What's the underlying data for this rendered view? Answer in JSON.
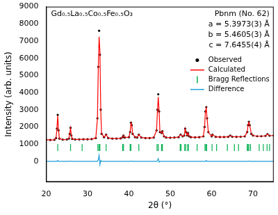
{
  "chart_data": {
    "type": "scatter",
    "title": "Gd₀.₅La₀.₅Co₀.₅Fe₀.₅O₃",
    "annotations": [
      "Pbnm (No. 62)",
      "a = 5.3973(3) Å",
      "b = 5.4605(3) Å",
      "c = 7.6455(4) Å"
    ],
    "x_label": "2θ (°)",
    "y_label": "Intensity (arb. units)",
    "xlim": [
      20,
      75
    ],
    "xticks": [
      20,
      30,
      40,
      50,
      60,
      70
    ],
    "ylim": [
      -1200,
      9000
    ],
    "yticks": [
      0,
      1000,
      2000,
      3000,
      4000,
      5000,
      6000,
      7000,
      8000,
      9000
    ],
    "grid": false,
    "legend": "right",
    "series": [
      {
        "name": "Observed",
        "color": "#000000",
        "marker": "circle",
        "x": [
          20,
          21,
          22,
          22.4,
          22.6,
          22.8,
          23.0,
          23.2,
          24,
          25,
          25.5,
          25.7,
          25.9,
          26.1,
          26.3,
          27,
          28,
          29,
          30,
          31,
          32,
          32.4,
          32.6,
          32.8,
          33.0,
          33.2,
          33.4,
          34,
          34.5,
          35,
          36,
          37,
          38,
          38.5,
          38.7,
          39,
          40,
          40.3,
          40.5,
          40.7,
          40.9,
          41.5,
          42,
          42.4,
          43,
          44,
          45,
          46,
          46.7,
          46.9,
          47.1,
          47.3,
          47.5,
          47.9,
          48.1,
          48.5,
          49,
          50,
          51,
          52,
          52.5,
          53,
          53.4,
          53.6,
          53.8,
          54.1,
          54.3,
          54.6,
          55,
          56,
          57,
          58,
          58.3,
          58.5,
          58.7,
          58.9,
          59.2,
          60,
          60.2,
          61,
          62,
          63,
          64,
          64.5,
          65,
          66,
          67,
          68,
          68.6,
          68.8,
          69.0,
          69.2,
          69.6,
          70,
          71,
          72,
          73,
          73.5,
          74,
          75
        ],
        "values": [
          1250,
          1240,
          1250,
          1350,
          1900,
          2700,
          1800,
          1320,
          1260,
          1270,
          1320,
          1600,
          1950,
          1500,
          1300,
          1270,
          1270,
          1280,
          1280,
          1290,
          1350,
          2500,
          5500,
          7600,
          6200,
          3000,
          1600,
          1400,
          1550,
          1350,
          1320,
          1320,
          1330,
          1400,
          1500,
          1380,
          1400,
          1700,
          2250,
          2100,
          1600,
          1400,
          1380,
          1550,
          1380,
          1350,
          1350,
          1380,
          1800,
          3000,
          3900,
          2900,
          1700,
          1650,
          1750,
          1450,
          1380,
          1370,
          1380,
          1400,
          1550,
          1450,
          1500,
          1900,
          1700,
          1500,
          1650,
          1450,
          1400,
          1390,
          1400,
          1450,
          2000,
          2900,
          3150,
          2500,
          1700,
          1450,
          1550,
          1420,
          1410,
          1410,
          1420,
          1500,
          1430,
          1420,
          1430,
          1450,
          1700,
          2100,
          2300,
          2100,
          1600,
          1500,
          1460,
          1460,
          1480,
          1580,
          1490,
          1500
        ]
      },
      {
        "name": "Calculated",
        "color": "#ff0000",
        "line_style": "solid",
        "x": [
          20,
          21,
          22,
          22.4,
          22.6,
          22.8,
          23.0,
          23.2,
          24,
          25,
          25.5,
          25.7,
          25.9,
          26.1,
          26.3,
          27,
          28,
          29,
          30,
          31,
          32,
          32.4,
          32.6,
          32.8,
          33.0,
          33.2,
          33.4,
          34,
          34.5,
          35,
          36,
          37,
          38,
          38.5,
          38.7,
          39,
          40,
          40.3,
          40.5,
          40.7,
          40.9,
          41.5,
          42,
          42.4,
          43,
          44,
          45,
          46,
          46.7,
          46.9,
          47.1,
          47.3,
          47.5,
          47.9,
          48.1,
          48.5,
          49,
          50,
          51,
          52,
          52.5,
          53,
          53.4,
          53.6,
          53.8,
          54.1,
          54.3,
          54.6,
          55,
          56,
          57,
          58,
          58.3,
          58.5,
          58.7,
          58.9,
          59.2,
          60,
          60.2,
          61,
          62,
          63,
          64,
          64.5,
          65,
          66,
          67,
          68,
          68.6,
          68.8,
          69.0,
          69.2,
          69.6,
          70,
          71,
          72,
          73,
          73.5,
          74,
          75
        ],
        "values": [
          1250,
          1240,
          1250,
          1350,
          1900,
          2650,
          1800,
          1320,
          1260,
          1270,
          1320,
          1600,
          1930,
          1500,
          1300,
          1270,
          1270,
          1280,
          1280,
          1290,
          1350,
          2500,
          5400,
          7250,
          6400,
          2950,
          1600,
          1400,
          1550,
          1350,
          1320,
          1320,
          1330,
          1400,
          1500,
          1380,
          1400,
          1700,
          2230,
          2100,
          1600,
          1400,
          1380,
          1550,
          1380,
          1350,
          1350,
          1380,
          1800,
          2950,
          3750,
          2950,
          1700,
          1650,
          1750,
          1450,
          1380,
          1370,
          1380,
          1400,
          1550,
          1450,
          1500,
          1900,
          1700,
          1500,
          1650,
          1450,
          1400,
          1390,
          1400,
          1450,
          2000,
          2900,
          3100,
          2500,
          1700,
          1450,
          1550,
          1420,
          1410,
          1410,
          1420,
          1500,
          1430,
          1420,
          1430,
          1450,
          1700,
          2100,
          2280,
          2100,
          1600,
          1500,
          1460,
          1460,
          1480,
          1580,
          1490,
          1500
        ]
      },
      {
        "name": "Bragg Reflections",
        "color": "#00b050",
        "marker": "line",
        "x": [
          22.8,
          25.9,
          28.7,
          32.5,
          32.8,
          33.0,
          34.5,
          38.5,
          38.7,
          40.3,
          40.5,
          42.4,
          46.8,
          47.1,
          47.9,
          48.1,
          52.4,
          52.6,
          53.5,
          53.7,
          54.2,
          54.4,
          56.5,
          58.4,
          58.6,
          58.8,
          60.1,
          61.2,
          63.8,
          65.5,
          66.5,
          68.6,
          68.8,
          69.0,
          69.4,
          71.5,
          72.5,
          73.4,
          74.0
        ],
        "values": [
          800,
          800,
          800,
          800,
          800,
          800,
          800,
          800,
          800,
          800,
          800,
          800,
          800,
          800,
          800,
          800,
          800,
          800,
          800,
          800,
          800,
          800,
          800,
          800,
          800,
          800,
          800,
          800,
          800,
          800,
          800,
          800,
          800,
          800,
          800,
          800,
          800,
          800,
          800
        ]
      },
      {
        "name": "Difference",
        "color": "#1f9fd8",
        "line_style": "solid",
        "x": [
          20,
          21,
          22,
          22.4,
          22.6,
          22.8,
          23.0,
          23.2,
          24,
          25,
          25.5,
          25.7,
          25.9,
          26.1,
          26.3,
          27,
          28,
          29,
          30,
          31,
          32,
          32.4,
          32.6,
          32.8,
          33.0,
          33.2,
          33.4,
          34,
          34.5,
          35,
          36,
          37,
          38,
          38.5,
          38.7,
          39,
          40,
          40.3,
          40.5,
          40.7,
          40.9,
          41.5,
          42,
          42.4,
          43,
          44,
          45,
          46,
          46.7,
          46.9,
          47.1,
          47.3,
          47.5,
          47.9,
          48.1,
          48.5,
          49,
          50,
          51,
          52,
          52.5,
          53,
          53.4,
          53.6,
          53.8,
          54.1,
          54.3,
          54.6,
          55,
          56,
          57,
          58,
          58.3,
          58.5,
          58.7,
          58.9,
          59.2,
          60,
          60.2,
          61,
          62,
          63,
          64,
          64.5,
          65,
          66,
          67,
          68,
          68.6,
          68.8,
          69.0,
          69.2,
          69.6,
          70,
          71,
          72,
          73,
          73.5,
          74,
          75
        ],
        "values": [
          0,
          0,
          0,
          0,
          0,
          50,
          0,
          0,
          0,
          0,
          0,
          0,
          20,
          0,
          0,
          0,
          0,
          0,
          0,
          0,
          0,
          0,
          100,
          350,
          -200,
          50,
          0,
          0,
          0,
          0,
          0,
          0,
          0,
          0,
          0,
          0,
          0,
          0,
          20,
          0,
          0,
          0,
          0,
          0,
          0,
          0,
          0,
          0,
          0,
          50,
          150,
          -50,
          0,
          0,
          0,
          0,
          0,
          0,
          0,
          0,
          0,
          0,
          0,
          0,
          0,
          0,
          0,
          0,
          0,
          0,
          0,
          0,
          0,
          0,
          50,
          0,
          0,
          0,
          0,
          0,
          0,
          0,
          0,
          0,
          0,
          0,
          0,
          0,
          0,
          0,
          20,
          0,
          0,
          0,
          0,
          0,
          0,
          0,
          0,
          0
        ]
      }
    ]
  }
}
